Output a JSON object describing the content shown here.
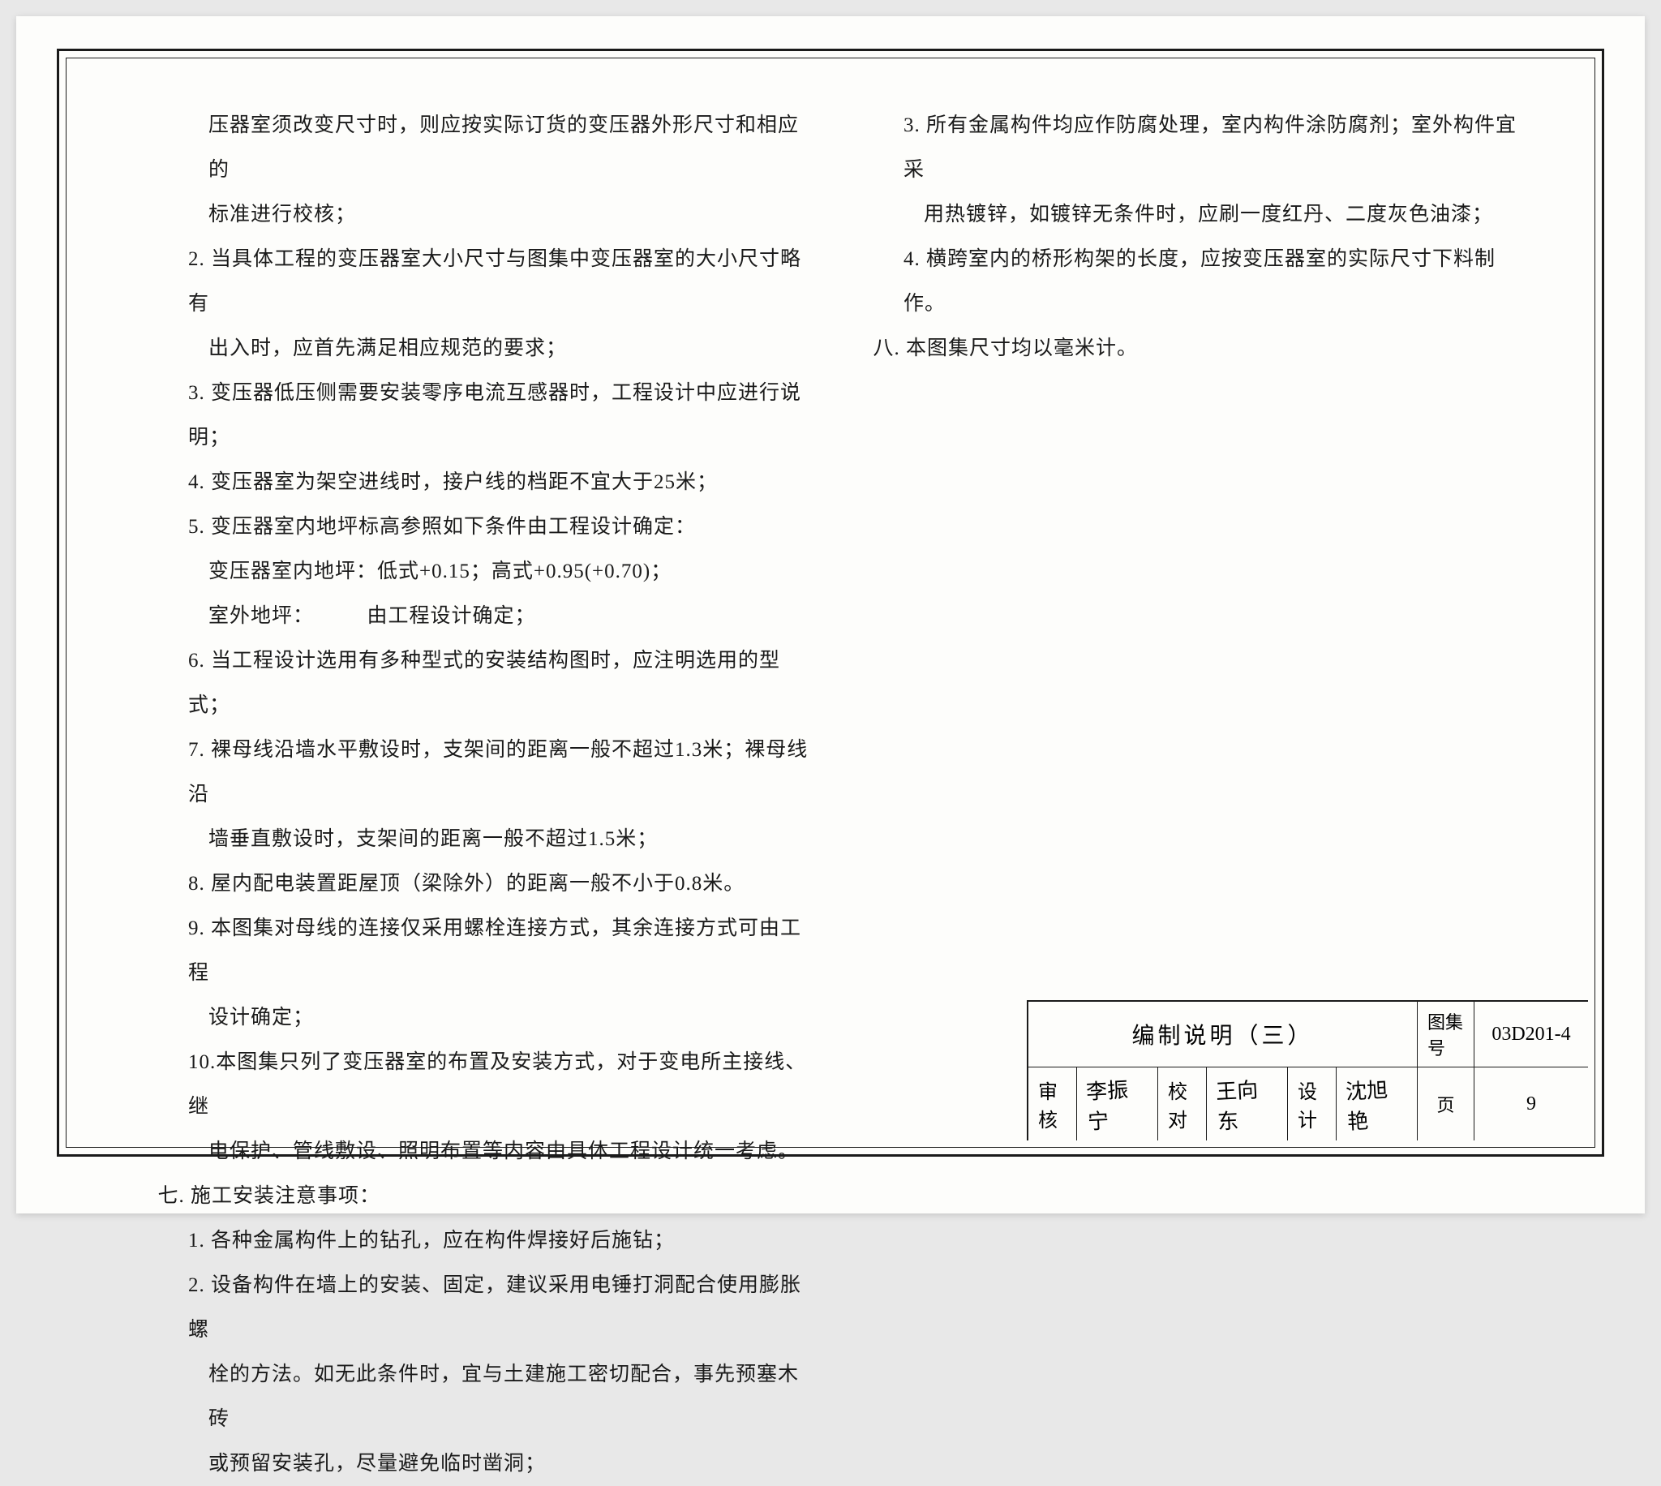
{
  "page": {
    "background": "#fdfdfb",
    "border_color": "#1a1a1a",
    "text_color": "#1a1a1a",
    "font_size_body": 25,
    "font_size_title": 28,
    "line_height": 2.2
  },
  "left_column": [
    {
      "cls": "indent2",
      "text": "压器室须改变尺寸时，则应按实际订货的变压器外形尺寸和相应的"
    },
    {
      "cls": "indent2",
      "text": "标准进行校核；"
    },
    {
      "cls": "indent1",
      "text": "2. 当具体工程的变压器室大小尺寸与图集中变压器室的大小尺寸略有"
    },
    {
      "cls": "indent2",
      "text": "出入时，应首先满足相应规范的要求；"
    },
    {
      "cls": "indent1",
      "text": "3. 变压器低压侧需要安装零序电流互感器时，工程设计中应进行说明；"
    },
    {
      "cls": "indent1",
      "text": "4. 变压器室为架空进线时，接户线的档距不宜大于25米；"
    },
    {
      "cls": "indent1",
      "text": "5. 变压器室内地坪标高参照如下条件由工程设计确定："
    },
    {
      "cls": "indent2",
      "text": "变压器室内地坪：低式+0.15；高式+0.95(+0.70)；"
    },
    {
      "cls": "indent2",
      "text": "室外地坪：　　　由工程设计确定；"
    },
    {
      "cls": "indent1",
      "text": "6. 当工程设计选用有多种型式的安装结构图时，应注明选用的型式；"
    },
    {
      "cls": "indent1",
      "text": "7. 裸母线沿墙水平敷设时，支架间的距离一般不超过1.3米；裸母线沿"
    },
    {
      "cls": "indent2",
      "text": "墙垂直敷设时，支架间的距离一般不超过1.5米；"
    },
    {
      "cls": "indent1",
      "text": "8. 屋内配电装置距屋顶（梁除外）的距离一般不小于0.8米。"
    },
    {
      "cls": "indent1",
      "text": "9. 本图集对母线的连接仅采用螺栓连接方式，其余连接方式可由工程"
    },
    {
      "cls": "indent2",
      "text": "设计确定；"
    },
    {
      "cls": "indent1",
      "text": "10.本图集只列了变压器室的布置及安装方式，对于变电所主接线、继"
    },
    {
      "cls": "indent2",
      "text": "电保护、管线敷设、照明布置等内容由具体工程设计统一考虑。"
    },
    {
      "cls": "sec-head",
      "text": "七. 施工安装注意事项："
    },
    {
      "cls": "indent1",
      "text": "1. 各种金属构件上的钻孔，应在构件焊接好后施钻；"
    },
    {
      "cls": "indent1",
      "text": "2. 设备构件在墙上的安装、固定，建议采用电锤打洞配合使用膨胀螺"
    },
    {
      "cls": "indent2",
      "text": "栓的方法。如无此条件时，宜与土建施工密切配合，事先预塞木砖"
    },
    {
      "cls": "indent2",
      "text": "或预留安装孔，尽量避免临时凿洞；"
    }
  ],
  "right_column": [
    {
      "cls": "indent1",
      "text": "3. 所有金属构件均应作防腐处理，室内构件涂防腐剂；室外构件宜采"
    },
    {
      "cls": "indent2",
      "text": "用热镀锌，如镀锌无条件时，应刷一度红丹、二度灰色油漆；"
    },
    {
      "cls": "indent1",
      "text": "4. 横跨室内的桥形构架的长度，应按变压器室的实际尺寸下料制作。"
    },
    {
      "cls": "sec-head",
      "text": "八. 本图集尺寸均以毫米计。"
    }
  ],
  "titleblock": {
    "title": "编制说明（三）",
    "drawing_set_label": "图集号",
    "drawing_set_value": "03D201-4",
    "review_label": "审核",
    "review_sig": "李振宁",
    "check_label": "校对",
    "check_sig": "王向东",
    "design_label": "设计",
    "design_sig": "沈旭艳",
    "page_label": "页",
    "page_value": "9"
  }
}
